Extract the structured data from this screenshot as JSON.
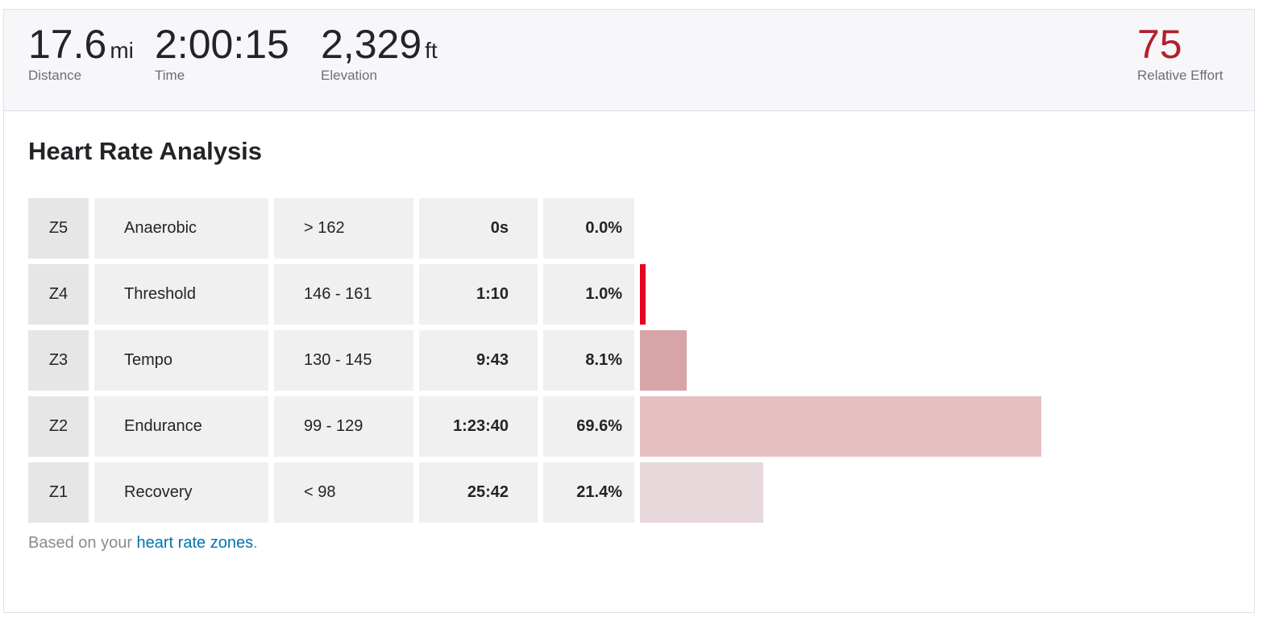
{
  "stats": {
    "distance": {
      "value": "17.6",
      "unit": "mi",
      "label": "Distance"
    },
    "time": {
      "value": "2:00:15",
      "label": "Time"
    },
    "elevation": {
      "value": "2,329",
      "unit": "ft",
      "label": "Elevation"
    },
    "relative_effort": {
      "value": "75",
      "label": "Relative Effort"
    }
  },
  "section_title": "Heart Rate Analysis",
  "zones": [
    {
      "zone": "Z5",
      "name": "Anaerobic",
      "range": "> 162",
      "time": "0s",
      "percent": "0.0%",
      "fraction": 0.0,
      "bar_color": "#e8001e"
    },
    {
      "zone": "Z4",
      "name": "Threshold",
      "range": "146 - 161",
      "time": "1:10",
      "percent": "1.0%",
      "fraction": 0.01,
      "bar_color": "#e8001e"
    },
    {
      "zone": "Z3",
      "name": "Tempo",
      "range": "130 - 145",
      "time": "9:43",
      "percent": "8.1%",
      "fraction": 0.081,
      "bar_color": "#d7a5a7"
    },
    {
      "zone": "Z2",
      "name": "Endurance",
      "range": "99 - 129",
      "time": "1:23:40",
      "percent": "69.6%",
      "fraction": 0.696,
      "bar_color": "#e5bfc1"
    },
    {
      "zone": "Z1",
      "name": "Recovery",
      "range": "< 98",
      "time": "25:42",
      "percent": "21.4%",
      "fraction": 0.214,
      "bar_color": "#e6d8da"
    }
  ],
  "footnote": {
    "prefix": "Based on your ",
    "link_text": "heart rate zones",
    "suffix": "."
  }
}
